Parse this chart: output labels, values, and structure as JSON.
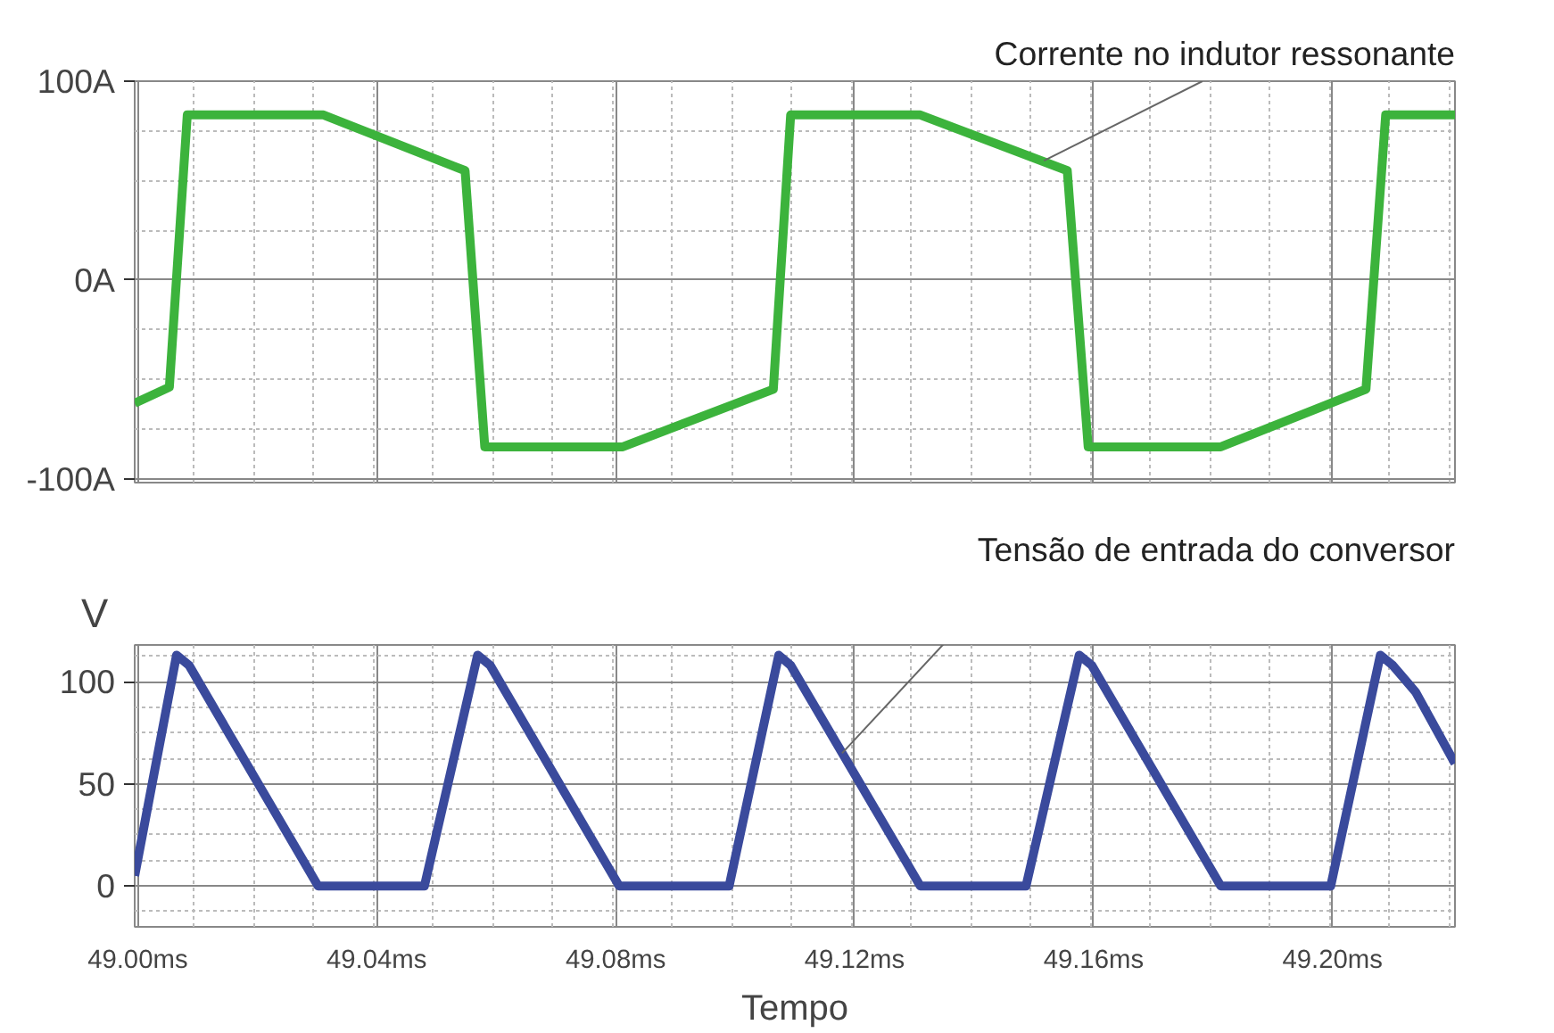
{
  "chart_data": [
    {
      "type": "line",
      "xlim": [
        48.9995,
        49.2205
      ],
      "xticks": [
        {
          "value": 49.0,
          "label": null
        },
        {
          "value": 49.04,
          "label": null
        },
        {
          "value": 49.08,
          "label": null
        },
        {
          "value": 49.12,
          "label": null
        },
        {
          "value": 49.16,
          "label": null
        },
        {
          "value": 49.2,
          "label": null
        }
      ],
      "ylim": [
        -102,
        100
      ],
      "yticks": [
        {
          "value": -100,
          "label": "-100A"
        },
        {
          "value": 0,
          "label": "0A"
        },
        {
          "value": 100,
          "label": "100A"
        }
      ],
      "tick_labels": "y",
      "grid": true,
      "x": [
        48.9995,
        49.0053,
        49.0083,
        49.0311,
        49.0548,
        49.0581,
        49.0812,
        49.1064,
        49.1093,
        49.131,
        49.1556,
        49.1591,
        49.1813,
        49.2056,
        49.2089,
        49.2205
      ],
      "series": [
        {
          "color": "#3cb33c",
          "values": [
            -62,
            -54,
            83,
            83,
            55,
            -84,
            -84,
            -55,
            83,
            83,
            55,
            -84,
            -84,
            -55,
            83,
            83
          ]
        }
      ],
      "annotations": [
        {
          "text": "Corrente no indutor ressonante",
          "x": 49.1517,
          "y": 60
        }
      ]
    },
    {
      "type": "line",
      "xlim": [
        48.9995,
        49.2205
      ],
      "xticks": [
        {
          "value": 49.0,
          "label": "49.00ms"
        },
        {
          "value": 49.04,
          "label": "49.04ms"
        },
        {
          "value": 49.08,
          "label": "49.08ms"
        },
        {
          "value": 49.12,
          "label": "49.12ms"
        },
        {
          "value": 49.16,
          "label": "49.16ms"
        },
        {
          "value": 49.2,
          "label": "49.20ms"
        }
      ],
      "ylim": [
        -20,
        118
      ],
      "yticks": [
        0,
        50,
        100
      ],
      "ylabel": "V",
      "xlabel": "Tempo",
      "grid": true,
      "x": [
        48.9995,
        49.0065,
        49.0086,
        49.0302,
        49.048,
        49.0569,
        49.059,
        49.0806,
        49.099,
        49.1073,
        49.1093,
        49.131,
        49.1487,
        49.1576,
        49.1597,
        49.1813,
        49.1997,
        49.208,
        49.2101,
        49.2139,
        49.2205
      ],
      "series": [
        {
          "color": "#3a4a9c",
          "values": [
            5,
            113,
            108,
            0,
            0,
            113,
            108,
            0,
            0,
            113,
            108,
            0,
            0,
            113,
            108,
            0,
            0,
            113,
            108,
            95,
            60
          ]
        }
      ],
      "annotations": [
        {
          "text": "Tensão de entrada do conversor",
          "x": 49.1179,
          "y": 65
        }
      ]
    }
  ]
}
